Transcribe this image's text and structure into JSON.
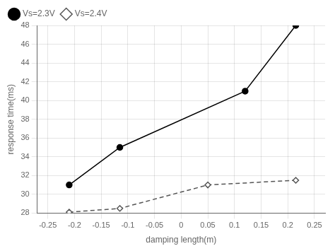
{
  "chart_data": {
    "type": "line",
    "xlabel": "damping length(m)",
    "ylabel": "response time(ms)",
    "series": [
      {
        "name": "Vs=2.3V",
        "color": "#000000",
        "marker": "circle",
        "line_style": "solid",
        "x": [
          -0.21,
          -0.115,
          0.12,
          0.215
        ],
        "values": [
          31.0,
          35.0,
          41.0,
          48.0
        ]
      },
      {
        "name": "Vs=2.4V",
        "color": "#555555",
        "marker": "diamond",
        "line_style": "dashed",
        "x": [
          -0.21,
          -0.115,
          0.05,
          0.215
        ],
        "values": [
          28.1,
          28.5,
          31.0,
          31.5
        ]
      }
    ],
    "xlim": [
      -0.27,
      0.27
    ],
    "ylim": [
      28,
      48
    ],
    "xticks": [
      -0.25,
      -0.2,
      -0.15,
      -0.1,
      -0.05,
      0,
      0.05,
      0.1,
      0.15,
      0.2,
      0.25
    ],
    "yticks": [
      28,
      30,
      32,
      34,
      36,
      38,
      40,
      42,
      44,
      46,
      48
    ],
    "grid": true,
    "legend": "upper left"
  }
}
